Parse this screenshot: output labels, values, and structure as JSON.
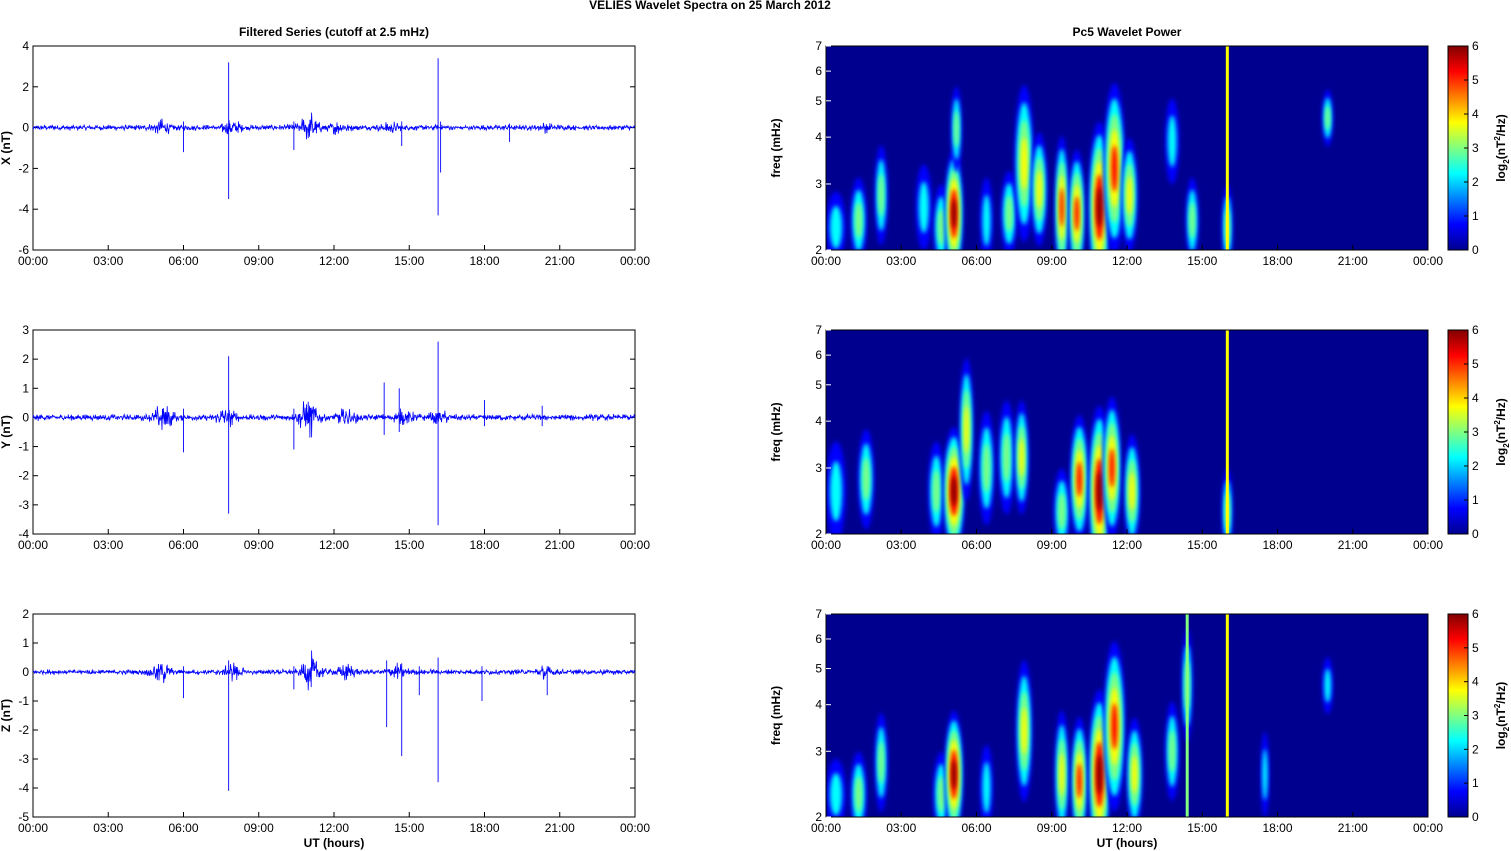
{
  "figure": {
    "title": "VELIES Wavelet Spectra on 25 March     2012",
    "left_title": "Filtered Series (cutoff at 2.5 mHz)",
    "right_title": "Pc5 Wavelet Power",
    "xlabel": "UT (hours)"
  },
  "colorbar": {
    "label_prefix": "log",
    "label_sub": "2",
    "label_mid": "(nT",
    "label_sup": "2",
    "label_suffix": "/Hz)",
    "ticks": [
      "0",
      "1",
      "2",
      "3",
      "4",
      "5",
      "6"
    ],
    "colors": [
      "#00008f",
      "#0000ff",
      "#0080ff",
      "#00ffff",
      "#80ff80",
      "#ffff00",
      "#ff8000",
      "#ff0000",
      "#800000"
    ]
  },
  "chart_data": [
    {
      "type": "line",
      "id": "x-series",
      "ylabel": "X (nT)",
      "ylim": [
        -6,
        4
      ],
      "yticks": [
        "4",
        "2",
        "0",
        "-2",
        "-4",
        "-6"
      ],
      "xticks": [
        "00:00",
        "03:00",
        "06:00",
        "09:00",
        "12:00",
        "15:00",
        "18:00",
        "21:00",
        "00:00"
      ],
      "xlim": [
        0,
        24
      ],
      "color": "#0000ff",
      "baseline_amplitude": 0.15,
      "bursts": [
        {
          "t": 5.1,
          "amp": 0.35
        },
        {
          "t": 7.9,
          "amp": 0.4
        },
        {
          "t": 11.0,
          "amp": 0.8
        },
        {
          "t": 12.2,
          "amp": 0.3
        },
        {
          "t": 14.2,
          "amp": 0.25
        },
        {
          "t": 20.4,
          "amp": 0.15
        }
      ],
      "spikes": [
        {
          "t": 7.8,
          "hi": 3.2,
          "lo": -3.5
        },
        {
          "t": 16.15,
          "hi": 3.4,
          "lo": -4.3
        },
        {
          "t": 6.0,
          "hi": 0.3,
          "lo": -1.2
        },
        {
          "t": 10.4,
          "hi": 0.3,
          "lo": -1.1
        },
        {
          "t": 14.7,
          "hi": 0.3,
          "lo": -0.9
        },
        {
          "t": 16.25,
          "hi": 0.3,
          "lo": -2.2
        },
        {
          "t": 19.0,
          "hi": 0.2,
          "lo": -0.7
        }
      ]
    },
    {
      "type": "line",
      "id": "y-series",
      "ylabel": "Y (nT)",
      "ylim": [
        -4,
        3
      ],
      "yticks": [
        "3",
        "2",
        "1",
        "0",
        "-1",
        "-2",
        "-3",
        "-4"
      ],
      "xticks": [
        "00:00",
        "03:00",
        "06:00",
        "09:00",
        "12:00",
        "15:00",
        "18:00",
        "21:00",
        "00:00"
      ],
      "xlim": [
        0,
        24
      ],
      "color": "#0000ff",
      "baseline_amplitude": 0.12,
      "bursts": [
        {
          "t": 5.2,
          "amp": 0.5
        },
        {
          "t": 7.7,
          "amp": 0.3
        },
        {
          "t": 11.0,
          "amp": 0.7
        },
        {
          "t": 12.5,
          "amp": 0.3
        },
        {
          "t": 14.8,
          "amp": 0.25
        },
        {
          "t": 16.2,
          "amp": 0.2
        }
      ],
      "spikes": [
        {
          "t": 7.8,
          "hi": 2.1,
          "lo": -3.3
        },
        {
          "t": 16.15,
          "hi": 2.6,
          "lo": -3.7
        },
        {
          "t": 6.0,
          "hi": 0.3,
          "lo": -1.2
        },
        {
          "t": 10.4,
          "hi": 0.3,
          "lo": -1.1
        },
        {
          "t": 14.0,
          "hi": 1.2,
          "lo": -0.6
        },
        {
          "t": 14.6,
          "hi": 1.0,
          "lo": -0.5
        },
        {
          "t": 18.0,
          "hi": 0.6,
          "lo": -0.3
        },
        {
          "t": 20.3,
          "hi": 0.4,
          "lo": -0.3
        }
      ]
    },
    {
      "type": "line",
      "id": "z-series",
      "ylabel": "Z (nT)",
      "ylim": [
        -5,
        2
      ],
      "yticks": [
        "2",
        "1",
        "0",
        "-1",
        "-2",
        "-3",
        "-4",
        "-5"
      ],
      "xticks": [
        "00:00",
        "03:00",
        "06:00",
        "09:00",
        "12:00",
        "15:00",
        "18:00",
        "21:00",
        "00:00"
      ],
      "xlim": [
        0,
        24
      ],
      "color": "#0000ff",
      "baseline_amplitude": 0.1,
      "bursts": [
        {
          "t": 5.1,
          "amp": 0.4
        },
        {
          "t": 8.0,
          "amp": 0.3
        },
        {
          "t": 11.1,
          "amp": 0.7
        },
        {
          "t": 12.5,
          "amp": 0.3
        },
        {
          "t": 14.5,
          "amp": 0.25
        },
        {
          "t": 20.4,
          "amp": 0.2
        }
      ],
      "spikes": [
        {
          "t": 7.8,
          "hi": 0.4,
          "lo": -4.1
        },
        {
          "t": 16.15,
          "hi": 0.5,
          "lo": -3.8
        },
        {
          "t": 14.1,
          "hi": 0.4,
          "lo": -1.9
        },
        {
          "t": 14.7,
          "hi": 0.3,
          "lo": -2.9
        },
        {
          "t": 6.0,
          "hi": 0.2,
          "lo": -0.9
        },
        {
          "t": 10.4,
          "hi": 0.2,
          "lo": -0.6
        },
        {
          "t": 15.4,
          "hi": 0.2,
          "lo": -0.8
        },
        {
          "t": 17.9,
          "hi": 0.2,
          "lo": -1.0
        },
        {
          "t": 20.5,
          "hi": 0.2,
          "lo": -0.8
        }
      ]
    },
    {
      "type": "heatmap",
      "id": "x-wavelet",
      "ylabel": "freq (mHz)",
      "ylim": [
        2,
        7
      ],
      "yscale": "log",
      "yticks": [
        "7",
        "6",
        "5",
        "4",
        "3",
        "2"
      ],
      "ytick_values": [
        7,
        6,
        5,
        4,
        3,
        2
      ],
      "xticks": [
        "00:00",
        "03:00",
        "06:00",
        "09:00",
        "12:00",
        "15:00",
        "18:00",
        "21:00",
        "00:00"
      ],
      "xlim": [
        0,
        24
      ],
      "clim": [
        0,
        6
      ],
      "blobs": [
        {
          "t": 0.4,
          "f": 2.3,
          "p": 2.0,
          "w": 0.18,
          "h": 0.25
        },
        {
          "t": 1.3,
          "f": 2.4,
          "p": 3.0,
          "w": 0.15,
          "h": 0.3
        },
        {
          "t": 2.2,
          "f": 2.8,
          "p": 2.5,
          "w": 0.12,
          "h": 0.35
        },
        {
          "t": 3.9,
          "f": 2.6,
          "p": 2.2,
          "w": 0.15,
          "h": 0.3
        },
        {
          "t": 4.6,
          "f": 2.3,
          "p": 3.0,
          "w": 0.15,
          "h": 0.3
        },
        {
          "t": 5.1,
          "f": 2.5,
          "p": 6.0,
          "w": 0.17,
          "h": 0.45
        },
        {
          "t": 5.2,
          "f": 4.2,
          "p": 2.8,
          "w": 0.1,
          "h": 0.3
        },
        {
          "t": 6.4,
          "f": 2.4,
          "p": 2.2,
          "w": 0.12,
          "h": 0.3
        },
        {
          "t": 7.3,
          "f": 2.5,
          "p": 2.5,
          "w": 0.15,
          "h": 0.3
        },
        {
          "t": 7.9,
          "f": 3.4,
          "p": 3.8,
          "w": 0.18,
          "h": 0.55
        },
        {
          "t": 8.5,
          "f": 2.9,
          "p": 3.5,
          "w": 0.15,
          "h": 0.4
        },
        {
          "t": 9.4,
          "f": 2.6,
          "p": 4.5,
          "w": 0.13,
          "h": 0.5
        },
        {
          "t": 10.0,
          "f": 2.5,
          "p": 5.0,
          "w": 0.15,
          "h": 0.45
        },
        {
          "t": 10.9,
          "f": 2.6,
          "p": 6.0,
          "w": 0.2,
          "h": 0.6
        },
        {
          "t": 11.5,
          "f": 3.3,
          "p": 4.5,
          "w": 0.2,
          "h": 0.6
        },
        {
          "t": 12.1,
          "f": 2.8,
          "p": 4.0,
          "w": 0.15,
          "h": 0.4
        },
        {
          "t": 13.8,
          "f": 3.9,
          "p": 2.3,
          "w": 0.13,
          "h": 0.3
        },
        {
          "t": 14.6,
          "f": 2.4,
          "p": 2.6,
          "w": 0.12,
          "h": 0.3
        },
        {
          "t": 16.0,
          "f": 2.3,
          "p": 2.5,
          "w": 0.1,
          "h": 0.3
        },
        {
          "t": 20.0,
          "f": 4.5,
          "p": 2.5,
          "w": 0.1,
          "h": 0.2
        }
      ],
      "vlines": [
        {
          "t": 16.0,
          "p": 3.5
        }
      ]
    },
    {
      "type": "heatmap",
      "id": "y-wavelet",
      "ylabel": "freq (mHz)",
      "ylim": [
        2,
        7
      ],
      "yscale": "log",
      "yticks": [
        "7",
        "6",
        "5",
        "4",
        "3",
        "2"
      ],
      "ytick_values": [
        7,
        6,
        5,
        4,
        3,
        2
      ],
      "xticks": [
        "00:00",
        "03:00",
        "06:00",
        "09:00",
        "12:00",
        "15:00",
        "18:00",
        "21:00",
        "00:00"
      ],
      "xlim": [
        0,
        24
      ],
      "clim": [
        0,
        6
      ],
      "blobs": [
        {
          "t": 0.4,
          "f": 2.6,
          "p": 2.2,
          "w": 0.18,
          "h": 0.35
        },
        {
          "t": 1.6,
          "f": 2.8,
          "p": 2.8,
          "w": 0.15,
          "h": 0.35
        },
        {
          "t": 4.4,
          "f": 2.6,
          "p": 2.8,
          "w": 0.15,
          "h": 0.35
        },
        {
          "t": 5.1,
          "f": 2.6,
          "p": 6.0,
          "w": 0.2,
          "h": 0.45
        },
        {
          "t": 5.6,
          "f": 3.8,
          "p": 3.5,
          "w": 0.13,
          "h": 0.5
        },
        {
          "t": 6.4,
          "f": 3.0,
          "p": 3.0,
          "w": 0.15,
          "h": 0.4
        },
        {
          "t": 7.2,
          "f": 3.2,
          "p": 2.8,
          "w": 0.15,
          "h": 0.4
        },
        {
          "t": 7.8,
          "f": 3.2,
          "p": 4.0,
          "w": 0.13,
          "h": 0.4
        },
        {
          "t": 9.4,
          "f": 2.3,
          "p": 3.0,
          "w": 0.15,
          "h": 0.3
        },
        {
          "t": 10.1,
          "f": 2.8,
          "p": 5.0,
          "w": 0.17,
          "h": 0.45
        },
        {
          "t": 10.9,
          "f": 2.6,
          "p": 6.0,
          "w": 0.2,
          "h": 0.6
        },
        {
          "t": 11.4,
          "f": 3.0,
          "p": 4.5,
          "w": 0.17,
          "h": 0.5
        },
        {
          "t": 12.2,
          "f": 2.6,
          "p": 3.8,
          "w": 0.15,
          "h": 0.4
        },
        {
          "t": 16.0,
          "f": 2.3,
          "p": 2.5,
          "w": 0.1,
          "h": 0.3
        }
      ],
      "vlines": [
        {
          "t": 16.0,
          "p": 3.5
        }
      ]
    },
    {
      "type": "heatmap",
      "id": "z-wavelet",
      "ylabel": "freq (mHz)",
      "ylim": [
        2,
        7
      ],
      "yscale": "log",
      "yticks": [
        "7",
        "6",
        "5",
        "4",
        "3",
        "2"
      ],
      "ytick_values": [
        7,
        6,
        5,
        4,
        3,
        2
      ],
      "xticks": [
        "00:00",
        "03:00",
        "06:00",
        "09:00",
        "12:00",
        "15:00",
        "18:00",
        "21:00",
        "00:00"
      ],
      "xlim": [
        0,
        24
      ],
      "clim": [
        0,
        6
      ],
      "blobs": [
        {
          "t": 0.4,
          "f": 2.3,
          "p": 2.0,
          "w": 0.18,
          "h": 0.25
        },
        {
          "t": 1.3,
          "f": 2.3,
          "p": 3.0,
          "w": 0.15,
          "h": 0.3
        },
        {
          "t": 2.2,
          "f": 2.8,
          "p": 2.5,
          "w": 0.12,
          "h": 0.35
        },
        {
          "t": 4.6,
          "f": 2.3,
          "p": 3.0,
          "w": 0.15,
          "h": 0.3
        },
        {
          "t": 5.1,
          "f": 2.6,
          "p": 6.0,
          "w": 0.17,
          "h": 0.45
        },
        {
          "t": 6.4,
          "f": 2.4,
          "p": 2.2,
          "w": 0.12,
          "h": 0.3
        },
        {
          "t": 7.9,
          "f": 3.4,
          "p": 3.5,
          "w": 0.15,
          "h": 0.5
        },
        {
          "t": 9.4,
          "f": 2.6,
          "p": 4.0,
          "w": 0.13,
          "h": 0.45
        },
        {
          "t": 10.1,
          "f": 2.5,
          "p": 5.0,
          "w": 0.15,
          "h": 0.45
        },
        {
          "t": 10.9,
          "f": 2.6,
          "p": 6.0,
          "w": 0.2,
          "h": 0.6
        },
        {
          "t": 11.5,
          "f": 3.5,
          "p": 4.5,
          "w": 0.2,
          "h": 0.6
        },
        {
          "t": 12.3,
          "f": 2.6,
          "p": 3.5,
          "w": 0.15,
          "h": 0.4
        },
        {
          "t": 13.8,
          "f": 3.0,
          "p": 2.5,
          "w": 0.13,
          "h": 0.35
        },
        {
          "t": 14.4,
          "f": 4.5,
          "p": 2.5,
          "w": 0.1,
          "h": 0.4
        },
        {
          "t": 17.5,
          "f": 2.6,
          "p": 2.0,
          "w": 0.08,
          "h": 0.3
        },
        {
          "t": 20.0,
          "f": 4.5,
          "p": 2.2,
          "w": 0.1,
          "h": 0.2
        }
      ],
      "vlines": [
        {
          "t": 16.0,
          "p": 3.5
        },
        {
          "t": 14.4,
          "p": 3.0
        }
      ]
    }
  ]
}
